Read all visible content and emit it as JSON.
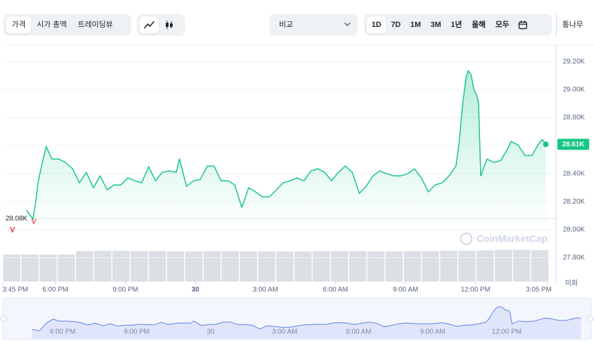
{
  "tabs": [
    "가격",
    "시가 총액",
    "트레이딩뷰"
  ],
  "compare": "비교",
  "ranges": [
    "1D",
    "7D",
    "1M",
    "3M",
    "1년",
    "올해",
    "모두"
  ],
  "log_label": "통나무",
  "chart_data": {
    "type": "line",
    "color": "#16c784",
    "x": [
      16.76,
      17.05,
      17.17,
      17.26,
      17.41,
      17.61,
      17.85,
      18.15,
      18.44,
      18.74,
      19.03,
      19.33,
      19.63,
      19.92,
      20.22,
      20.51,
      20.81,
      21.11,
      21.4,
      21.7,
      22.0,
      22.29,
      22.58,
      22.88,
      23.18,
      23.32,
      23.62,
      23.92,
      24.21,
      24.51,
      24.8,
      25.1,
      25.4,
      25.69,
      25.99,
      26.28,
      26.58,
      26.87,
      27.17,
      27.47,
      27.76,
      28.06,
      28.35,
      28.65,
      28.95,
      29.24,
      29.54,
      29.83,
      30.13,
      30.42,
      30.72,
      31.02,
      31.31,
      31.61,
      31.9,
      32.2,
      32.5,
      32.79,
      33.09,
      33.38,
      33.68,
      33.98,
      34.27,
      34.57,
      34.86,
      35.16,
      35.3,
      35.45,
      35.6,
      35.69,
      35.81,
      35.93,
      36.05,
      36.13,
      36.22,
      36.49,
      36.78,
      37.08,
      37.38,
      37.52,
      37.82,
      38.12,
      38.41,
      38.71,
      38.86,
      39.01
    ],
    "values": [
      28140,
      28075,
      28210,
      28335,
      28455,
      28595,
      28505,
      28505,
      28480,
      28435,
      28335,
      28410,
      28300,
      28385,
      28285,
      28320,
      28320,
      28370,
      28350,
      28335,
      28450,
      28350,
      28410,
      28420,
      28410,
      28505,
      28310,
      28350,
      28360,
      28455,
      28455,
      28350,
      28350,
      28320,
      28160,
      28300,
      28270,
      28235,
      28235,
      28285,
      28335,
      28350,
      28370,
      28350,
      28420,
      28435,
      28410,
      28350,
      28410,
      28455,
      28410,
      28260,
      28310,
      28385,
      28420,
      28400,
      28385,
      28385,
      28400,
      28435,
      28370,
      28270,
      28320,
      28335,
      28385,
      28455,
      28630,
      28900,
      29095,
      29135,
      29105,
      29000,
      28960,
      28900,
      28385,
      28505,
      28480,
      28495,
      28580,
      28630,
      28605,
      28530,
      28530,
      28615,
      28645,
      28610
    ],
    "xlim": [
      15.75,
      39.15
    ],
    "xticks": [
      {
        "value": 15.75,
        "label": "3:45 PM"
      },
      {
        "value": 18,
        "label": "6:00 PM"
      },
      {
        "value": 21,
        "label": "9:00 PM"
      },
      {
        "value": 24,
        "label": "30"
      },
      {
        "value": 27,
        "label": "3:00 AM"
      },
      {
        "value": 30,
        "label": "6:00 AM"
      },
      {
        "value": 33,
        "label": "9:00 AM"
      },
      {
        "value": 36,
        "label": "12:00 PM"
      },
      {
        "value": 39.083,
        "label": "3:05 PM"
      }
    ],
    "ylim": [
      27650,
      29320
    ],
    "yticks": [
      {
        "value": 27800,
        "label": "27.80K"
      },
      {
        "value": 28000,
        "label": "28.00K"
      },
      {
        "value": 28200,
        "label": "28.20K"
      },
      {
        "value": 28400,
        "label": "28.40K"
      },
      {
        "value": 28600,
        "label": "28.60K"
      },
      {
        "value": 28800,
        "label": "28.80K"
      },
      {
        "value": 29000,
        "label": "29.00K"
      },
      {
        "value": 29200,
        "label": "29.20K"
      }
    ],
    "grid": true,
    "reference": {
      "value": 28080,
      "label": "28.08K"
    },
    "current_label": "28.61K",
    "currency_label": "미화",
    "watermark": "CoinMarketCap",
    "volume": {
      "color": "#dcdfe4",
      "ylim": [
        0,
        100
      ],
      "values": [
        85,
        85,
        85,
        85,
        96,
        97,
        97,
        96,
        96,
        95,
        95,
        96,
        96,
        95,
        95,
        95,
        95,
        96,
        96,
        96,
        95,
        95,
        96,
        96,
        97,
        97,
        98,
        100,
        100,
        99
      ]
    },
    "navigator": {
      "color": "#5f7fe8",
      "xlim": [
        15.6,
        39.4
      ],
      "ylim": [
        28000,
        29200
      ],
      "xticks": [
        {
          "value": 18,
          "label": "6:00 PM"
        },
        {
          "value": 21,
          "label": "9:00 PM"
        },
        {
          "value": 24,
          "label": "30"
        },
        {
          "value": 27,
          "label": "3:00 AM"
        },
        {
          "value": 30,
          "label": "6:00 AM"
        },
        {
          "value": 33,
          "label": "9:00 AM"
        },
        {
          "value": 36,
          "label": "12:00 PM"
        }
      ]
    }
  }
}
